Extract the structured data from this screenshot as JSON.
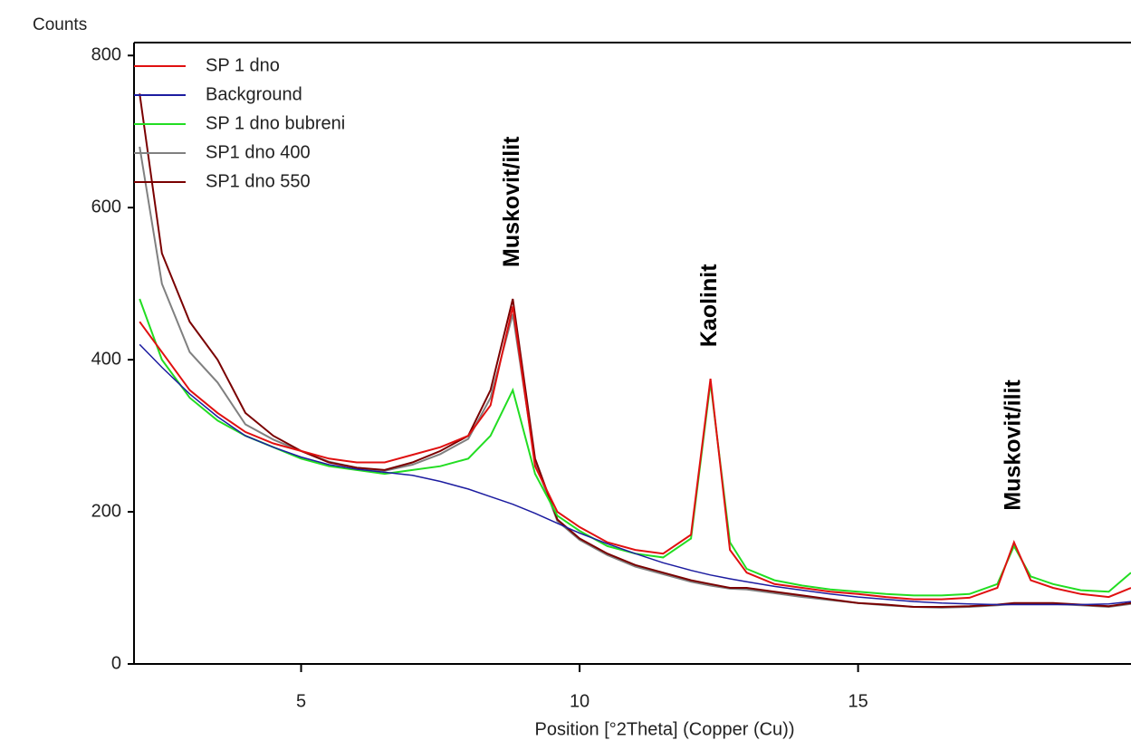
{
  "chart_data": {
    "type": "line",
    "y_label": "Counts",
    "x_label": "Position [°2Theta] (Copper (Cu))",
    "x": [
      2.1,
      2.5,
      3,
      3.5,
      4,
      4.5,
      5,
      5.5,
      6,
      6.5,
      7,
      7.5,
      8,
      8.4,
      8.8,
      9.2,
      9.6,
      10,
      10.5,
      11,
      11.5,
      12,
      12.35,
      12.7,
      13,
      13.5,
      14,
      14.5,
      15,
      15.5,
      16,
      16.5,
      17,
      17.5,
      17.8,
      18.1,
      18.5,
      19,
      19.5,
      19.9
    ],
    "series": [
      {
        "name": "SP 1 dno",
        "color": "#e01010",
        "values": [
          450,
          410,
          360,
          330,
          305,
          290,
          280,
          270,
          265,
          265,
          275,
          285,
          300,
          340,
          470,
          260,
          200,
          180,
          160,
          150,
          145,
          170,
          375,
          150,
          120,
          105,
          100,
          95,
          92,
          88,
          85,
          85,
          87,
          100,
          160,
          110,
          100,
          92,
          88,
          100
        ]
      },
      {
        "name": "Background",
        "color": "#1c1ca0",
        "values": [
          420,
          390,
          355,
          325,
          300,
          285,
          272,
          262,
          256,
          252,
          248,
          240,
          230,
          220,
          210,
          198,
          185,
          172,
          158,
          145,
          133,
          123,
          117,
          112,
          108,
          102,
          97,
          92,
          88,
          85,
          82,
          80,
          79,
          78,
          78,
          78,
          78,
          78,
          79,
          82
        ]
      },
      {
        "name": "SP 1 dno bubreni",
        "color": "#22dd22",
        "values": [
          480,
          400,
          350,
          320,
          300,
          285,
          270,
          260,
          255,
          250,
          255,
          260,
          270,
          300,
          360,
          250,
          195,
          175,
          155,
          145,
          140,
          165,
          370,
          160,
          125,
          110,
          103,
          98,
          95,
          92,
          90,
          90,
          92,
          105,
          155,
          115,
          105,
          97,
          95,
          120
        ]
      },
      {
        "name": "SP1 dno 400",
        "color": "#808080",
        "values": [
          680,
          500,
          410,
          370,
          315,
          295,
          280,
          266,
          258,
          254,
          262,
          276,
          296,
          350,
          460,
          265,
          188,
          163,
          143,
          128,
          118,
          108,
          103,
          99,
          98,
          93,
          88,
          84,
          80,
          77,
          75,
          74,
          75,
          77,
          79,
          79,
          79,
          77,
          75,
          79
        ]
      },
      {
        "name": "SP1 dno 550",
        "color": "#7a0000",
        "values": [
          750,
          540,
          450,
          400,
          330,
          300,
          280,
          265,
          258,
          255,
          265,
          280,
          300,
          360,
          480,
          270,
          190,
          165,
          145,
          130,
          120,
          110,
          105,
          100,
          100,
          95,
          90,
          85,
          80,
          78,
          75,
          75,
          76,
          78,
          80,
          80,
          80,
          78,
          76,
          80
        ]
      }
    ],
    "annotations": [
      {
        "label": "Muskovit/ilit",
        "x": 8.8
      },
      {
        "label": "Kaolinit",
        "x": 12.35
      },
      {
        "label": "Muskovit/ilit",
        "x": 17.8
      }
    ],
    "xlim": [
      2,
      19.9
    ],
    "xticks": [
      5,
      10,
      15
    ],
    "ylim": [
      0,
      817
    ],
    "yticks": [
      0,
      200,
      400,
      600,
      800
    ],
    "grid": false
  }
}
